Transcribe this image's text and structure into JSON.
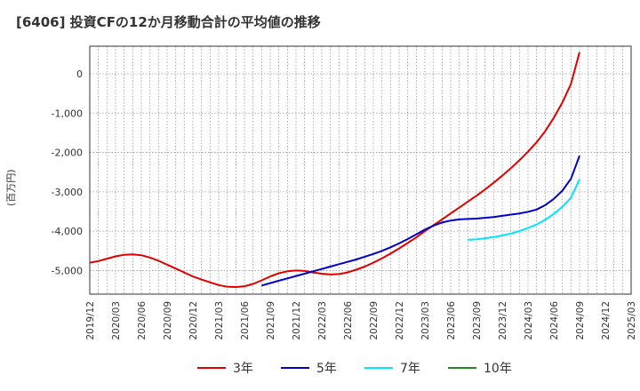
{
  "title": "[6406]  投資CFの12か月移動合計の平均値の推移",
  "chart_data": {
    "type": "line",
    "title": "[6406]  投資CFの12か月移動合計の平均値の推移",
    "xlabel": "",
    "ylabel": "(百万円)",
    "ylim": [
      -5600,
      700
    ],
    "yticks": [
      0,
      -1000,
      -2000,
      -3000,
      -4000,
      -5000
    ],
    "ytick_labels": [
      "0",
      "-1,000",
      "-2,000",
      "-3,000",
      "-4,000",
      "-5,000"
    ],
    "xticks": [
      "2019/12",
      "2020/03",
      "2020/06",
      "2020/09",
      "2020/12",
      "2021/03",
      "2021/06",
      "2021/09",
      "2021/12",
      "2022/03",
      "2022/06",
      "2022/09",
      "2022/12",
      "2023/03",
      "2023/06",
      "2023/09",
      "2023/12",
      "2024/03",
      "2024/06",
      "2024/09",
      "2024/12",
      "2025/03"
    ],
    "grid": true,
    "legend_position": "bottom",
    "series": [
      {
        "name": "3年",
        "color": "#e00000",
        "x": [
          "2019/12",
          "2020/01",
          "2020/02",
          "2020/03",
          "2020/04",
          "2020/05",
          "2020/06",
          "2020/07",
          "2020/08",
          "2020/09",
          "2020/10",
          "2020/11",
          "2020/12",
          "2021/01",
          "2021/02",
          "2021/03",
          "2021/04",
          "2021/05",
          "2021/06",
          "2021/07",
          "2021/08",
          "2021/09",
          "2021/10",
          "2021/11",
          "2021/12",
          "2022/01",
          "2022/02",
          "2022/03",
          "2022/04",
          "2022/05",
          "2022/06",
          "2022/07",
          "2022/08",
          "2022/09",
          "2022/10",
          "2022/11",
          "2022/12",
          "2023/01",
          "2023/02",
          "2023/03",
          "2023/04",
          "2023/05",
          "2023/06",
          "2023/07",
          "2023/08",
          "2023/09",
          "2023/10",
          "2023/11",
          "2023/12",
          "2024/01",
          "2024/02",
          "2024/03",
          "2024/04",
          "2024/05",
          "2024/06",
          "2024/07",
          "2024/08",
          "2024/09"
        ],
        "values": [
          -4800,
          -4760,
          -4700,
          -4640,
          -4600,
          -4590,
          -4610,
          -4670,
          -4750,
          -4850,
          -4950,
          -5050,
          -5150,
          -5230,
          -5300,
          -5370,
          -5410,
          -5420,
          -5400,
          -5340,
          -5250,
          -5150,
          -5070,
          -5020,
          -5000,
          -5010,
          -5050,
          -5080,
          -5100,
          -5090,
          -5050,
          -4980,
          -4900,
          -4800,
          -4690,
          -4570,
          -4440,
          -4300,
          -4160,
          -4000,
          -3850,
          -3700,
          -3550,
          -3400,
          -3250,
          -3100,
          -2940,
          -2770,
          -2590,
          -2400,
          -2200,
          -1980,
          -1740,
          -1460,
          -1120,
          -730,
          -260,
          550
        ]
      },
      {
        "name": "5年",
        "color": "#0000cc",
        "x": [
          "2021/08",
          "2021/09",
          "2021/10",
          "2021/11",
          "2021/12",
          "2022/01",
          "2022/02",
          "2022/03",
          "2022/04",
          "2022/05",
          "2022/06",
          "2022/07",
          "2022/08",
          "2022/09",
          "2022/10",
          "2022/11",
          "2022/12",
          "2023/01",
          "2023/02",
          "2023/03",
          "2023/04",
          "2023/05",
          "2023/06",
          "2023/07",
          "2023/08",
          "2023/09",
          "2023/10",
          "2023/11",
          "2023/12",
          "2024/01",
          "2024/02",
          "2024/03",
          "2024/04",
          "2024/05",
          "2024/06",
          "2024/07",
          "2024/08",
          "2024/09"
        ],
        "values": [
          -5380,
          -5320,
          -5260,
          -5200,
          -5140,
          -5080,
          -5020,
          -4960,
          -4900,
          -4840,
          -4780,
          -4720,
          -4650,
          -4580,
          -4500,
          -4410,
          -4310,
          -4200,
          -4080,
          -3960,
          -3860,
          -3780,
          -3730,
          -3700,
          -3690,
          -3680,
          -3660,
          -3640,
          -3610,
          -3580,
          -3550,
          -3510,
          -3450,
          -3340,
          -3180,
          -2970,
          -2670,
          -2080
        ]
      },
      {
        "name": "7年",
        "color": "#00e5ff",
        "x": [
          "2023/08",
          "2023/09",
          "2023/10",
          "2023/11",
          "2023/12",
          "2024/01",
          "2024/02",
          "2024/03",
          "2024/04",
          "2024/05",
          "2024/06",
          "2024/07",
          "2024/08",
          "2024/09"
        ],
        "values": [
          -4220,
          -4210,
          -4180,
          -4150,
          -4110,
          -4060,
          -4000,
          -3920,
          -3830,
          -3710,
          -3560,
          -3380,
          -3150,
          -2680
        ]
      },
      {
        "name": "10年",
        "color": "#228b22",
        "x": [],
        "values": []
      }
    ]
  }
}
